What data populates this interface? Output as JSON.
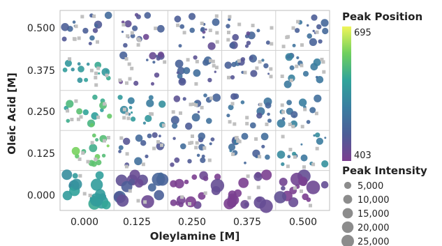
{
  "chart_data": {
    "type": "scatter",
    "layout": "grid-of-panels",
    "xlabel": "Oleylamine [M]",
    "ylabel": "Oleic Acid [M]",
    "x_categories": [
      "0.000",
      "0.125",
      "0.250",
      "0.375",
      "0.500"
    ],
    "y_categories": [
      "0.000",
      "0.125",
      "0.250",
      "0.375",
      "0.500"
    ],
    "colorbar": {
      "title": "Peak Position",
      "min": 403,
      "max": 695,
      "min_label": "403",
      "max_label": "695",
      "colormap": "viridis"
    },
    "size_legend": {
      "title": "Peak Intensity",
      "values": [
        5000,
        10000,
        15000,
        20000,
        25000
      ],
      "labels": [
        "5,000",
        "10,000",
        "15,000",
        "20,000",
        "25,000"
      ]
    },
    "no_peak_color": "#c0c0c0",
    "panel_mean_peak_position": [
      {
        "oleylamine": "0.000",
        "oleic_acid": "0.500",
        "peak_position": 470
      },
      {
        "oleylamine": "0.125",
        "oleic_acid": "0.500",
        "peak_position": 445
      },
      {
        "oleylamine": "0.250",
        "oleic_acid": "0.500",
        "peak_position": 455
      },
      {
        "oleylamine": "0.375",
        "oleic_acid": "0.500",
        "peak_position": 460
      },
      {
        "oleylamine": "0.500",
        "oleic_acid": "0.500",
        "peak_position": 480
      },
      {
        "oleylamine": "0.000",
        "oleic_acid": "0.375",
        "peak_position": 560
      },
      {
        "oleylamine": "0.125",
        "oleic_acid": "0.375",
        "peak_position": 450
      },
      {
        "oleylamine": "0.250",
        "oleic_acid": "0.375",
        "peak_position": 465
      },
      {
        "oleylamine": "0.375",
        "oleic_acid": "0.375",
        "peak_position": 475
      },
      {
        "oleylamine": "0.500",
        "oleic_acid": "0.375",
        "peak_position": 500
      },
      {
        "oleylamine": "0.000",
        "oleic_acid": "0.250",
        "peak_position": 600
      },
      {
        "oleylamine": "0.125",
        "oleic_acid": "0.250",
        "peak_position": 540
      },
      {
        "oleylamine": "0.250",
        "oleic_acid": "0.250",
        "peak_position": 470
      },
      {
        "oleylamine": "0.375",
        "oleic_acid": "0.250",
        "peak_position": 480
      },
      {
        "oleylamine": "0.500",
        "oleic_acid": "0.250",
        "peak_position": 500
      },
      {
        "oleylamine": "0.000",
        "oleic_acid": "0.125",
        "peak_position": 620
      },
      {
        "oleylamine": "0.125",
        "oleic_acid": "0.125",
        "peak_position": 470
      },
      {
        "oleylamine": "0.250",
        "oleic_acid": "0.125",
        "peak_position": 465
      },
      {
        "oleylamine": "0.375",
        "oleic_acid": "0.125",
        "peak_position": 490
      },
      {
        "oleylamine": "0.500",
        "oleic_acid": "0.125",
        "peak_position": 520
      },
      {
        "oleylamine": "0.000",
        "oleic_acid": "0.000",
        "peak_position": 560
      },
      {
        "oleylamine": "0.125",
        "oleic_acid": "0.000",
        "peak_position": 450
      },
      {
        "oleylamine": "0.250",
        "oleic_acid": "0.000",
        "peak_position": 410
      },
      {
        "oleylamine": "0.375",
        "oleic_acid": "0.000",
        "peak_position": 408
      },
      {
        "oleylamine": "0.500",
        "oleic_acid": "0.000",
        "peak_position": 405
      }
    ]
  }
}
